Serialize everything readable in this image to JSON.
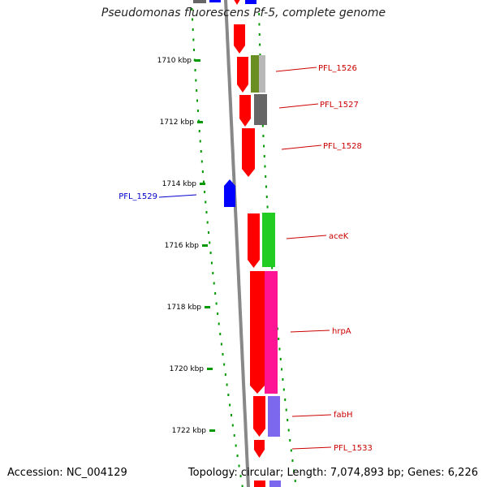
{
  "title": "Pseudomonas fluorescens Pf-5, complete genome",
  "footer": {
    "accession": "Accession: NC_004129",
    "topology": "Topology: circular; Length: 7,074,893 bp; Genes: 6,226"
  },
  "ticks": [
    "1710 kbp",
    "1712 kbp",
    "1714 kbp",
    "1716 kbp",
    "1718 kbp",
    "1720 kbp",
    "1722 kbp"
  ],
  "colors": {
    "forward": "#ff0000",
    "reverse": "#0000ff",
    "label_forward": "#cc0000",
    "label_reverse": "#0000cc",
    "backbone": "#888888",
    "dots": "#009900",
    "cog_olive": "#6b8e23",
    "cog_silver": "#b8b8b8",
    "cog_gray": "#666666",
    "cog_green": "#22cc22",
    "cog_magenta": "#ff1493",
    "cog_slate": "#7b68ee"
  },
  "genes": [
    {
      "label": "PFL_1526",
      "strand": "+"
    },
    {
      "label": "PFL_1527",
      "strand": "+"
    },
    {
      "label": "PFL_1528",
      "strand": "+"
    },
    {
      "label": "PFL_1529",
      "strand": "-"
    },
    {
      "label": "aceK",
      "strand": "+"
    },
    {
      "label": "hrpA",
      "strand": "+"
    },
    {
      "label": "fabH",
      "strand": "+"
    },
    {
      "label": "PFL_1533",
      "strand": "+"
    }
  ]
}
